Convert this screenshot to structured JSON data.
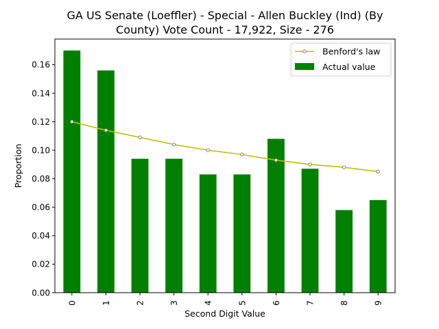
{
  "chart_data": {
    "type": "bar",
    "title_lines": [
      "GA US Senate (Loeffler) - Special - Allen Buckley (Ind) (By",
      "County) Vote Count - 17,922, Size - 276"
    ],
    "xlabel": "Second Digit Value",
    "ylabel": "Proportion",
    "categories": [
      "0",
      "1",
      "2",
      "3",
      "4",
      "5",
      "6",
      "7",
      "8",
      "9"
    ],
    "ylim": [
      0,
      0.178
    ],
    "yticks": [
      0.0,
      0.02,
      0.04,
      0.06,
      0.08,
      0.1,
      0.12,
      0.14,
      0.16
    ],
    "ytick_labels": [
      "0.00",
      "0.02",
      "0.04",
      "0.06",
      "0.08",
      "0.10",
      "0.12",
      "0.14",
      "0.16"
    ],
    "grid": false,
    "legend_position": "top-right",
    "series": [
      {
        "name": "Benford's law",
        "kind": "line",
        "color": "#bfbf00",
        "values": [
          0.12,
          0.114,
          0.109,
          0.104,
          0.1,
          0.097,
          0.093,
          0.09,
          0.088,
          0.085
        ]
      },
      {
        "name": "Actual value",
        "kind": "bar",
        "color": "#008000",
        "values": [
          0.17,
          0.156,
          0.094,
          0.094,
          0.083,
          0.083,
          0.108,
          0.087,
          0.058,
          0.065
        ]
      }
    ]
  }
}
